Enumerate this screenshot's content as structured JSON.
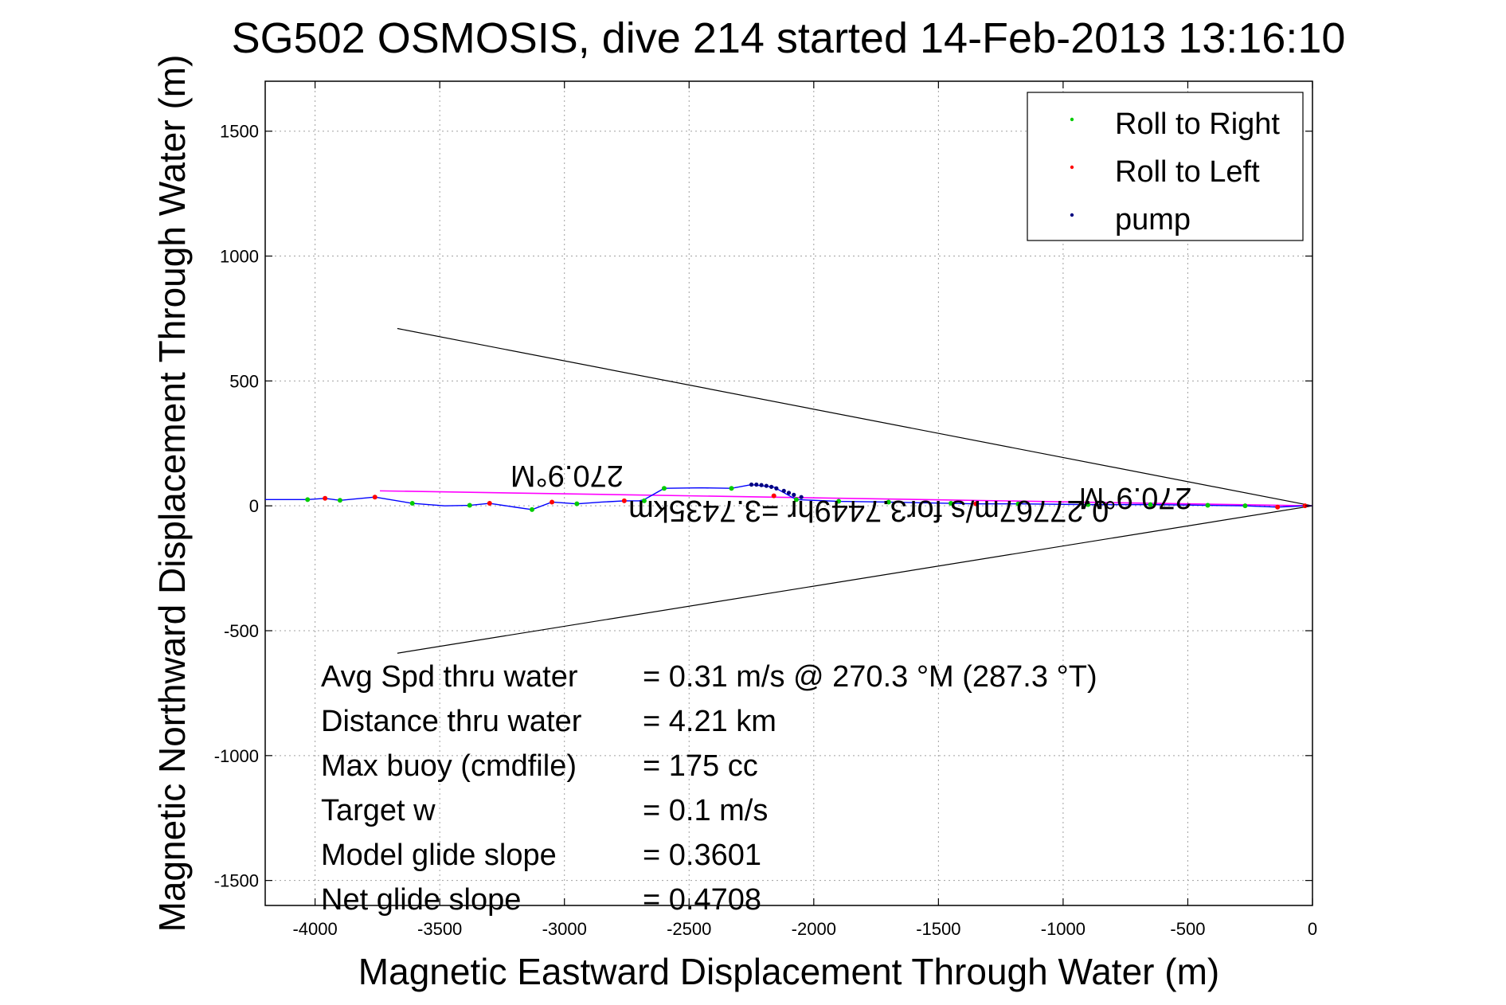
{
  "chart_data": {
    "type": "scatter",
    "title": "SG502 OSMOSIS, dive 214 started 14-Feb-2013 13:16:10",
    "xlabel": "Magnetic Eastward Displacement Through Water (m)",
    "ylabel": "Magnetic Northward Displacement Through Water (m)",
    "xlim": [
      -4200,
      0
    ],
    "ylim": [
      -1600,
      1700
    ],
    "x_ticks": [
      -4000,
      -3500,
      -3000,
      -2500,
      -2000,
      -1500,
      -1000,
      -500,
      0
    ],
    "x_tick_labels": [
      "-4000",
      "-3500",
      "-3000",
      "-2500",
      "-2000",
      "-1500",
      "-1000",
      "-500",
      "0"
    ],
    "y_ticks": [
      1500,
      1000,
      500,
      0,
      -500,
      -1000,
      -1500
    ],
    "y_tick_labels": [
      "1500",
      "1000",
      "500",
      "0",
      "-500",
      "-1000",
      "-1500"
    ],
    "grid": true,
    "legend_position": "top-right",
    "colors": {
      "roll_right": "#00cc00",
      "roll_left": "#ff0000",
      "pump": "#000080",
      "track": "#0000ff",
      "depth_avg_current": "#ff00ff",
      "cone": "#000000"
    },
    "series": [
      {
        "name": "Roll to Right",
        "points": [
          [
            -4030,
            25
          ],
          [
            -3900,
            22
          ],
          [
            -3610,
            10
          ],
          [
            -3380,
            2
          ],
          [
            -3130,
            -15
          ],
          [
            -2950,
            8
          ],
          [
            -2680,
            20
          ],
          [
            -2600,
            70
          ],
          [
            -2330,
            70
          ],
          [
            -2070,
            25
          ],
          [
            -1900,
            18
          ],
          [
            -1700,
            15
          ],
          [
            -1450,
            10
          ],
          [
            -1180,
            8
          ],
          [
            -900,
            5
          ],
          [
            -650,
            5
          ],
          [
            -420,
            2
          ],
          [
            -270,
            0
          ]
        ]
      },
      {
        "name": "Roll to Left",
        "points": [
          [
            -3960,
            30
          ],
          [
            -3760,
            35
          ],
          [
            -3300,
            10
          ],
          [
            -3050,
            15
          ],
          [
            -2760,
            20
          ],
          [
            -2160,
            40
          ],
          [
            -1350,
            8
          ],
          [
            -140,
            -5
          ],
          [
            -30,
            0
          ]
        ]
      },
      {
        "name": "pump",
        "points": [
          [
            -2250,
            85
          ],
          [
            -2230,
            85
          ],
          [
            -2210,
            83
          ],
          [
            -2190,
            80
          ],
          [
            -2170,
            76
          ],
          [
            -2150,
            70
          ],
          [
            -2120,
            60
          ],
          [
            -2100,
            52
          ],
          [
            -2080,
            44
          ],
          [
            -2050,
            35
          ]
        ]
      }
    ],
    "track": [
      [
        -4200,
        25
      ],
      [
        -4030,
        25
      ],
      [
        -3960,
        30
      ],
      [
        -3900,
        22
      ],
      [
        -3760,
        35
      ],
      [
        -3610,
        10
      ],
      [
        -3480,
        0
      ],
      [
        -3380,
        2
      ],
      [
        -3300,
        10
      ],
      [
        -3200,
        -5
      ],
      [
        -3130,
        -15
      ],
      [
        -3050,
        15
      ],
      [
        -2950,
        8
      ],
      [
        -2850,
        15
      ],
      [
        -2760,
        20
      ],
      [
        -2700,
        20
      ],
      [
        -2680,
        25
      ],
      [
        -2600,
        70
      ],
      [
        -2450,
        72
      ],
      [
        -2330,
        70
      ],
      [
        -2250,
        85
      ],
      [
        -2160,
        75
      ],
      [
        -2070,
        25
      ],
      [
        -1900,
        18
      ],
      [
        -1700,
        15
      ],
      [
        -1450,
        10
      ],
      [
        -1350,
        8
      ],
      [
        -1180,
        8
      ],
      [
        -900,
        5
      ],
      [
        -650,
        5
      ],
      [
        -420,
        2
      ],
      [
        -270,
        0
      ],
      [
        -140,
        -5
      ],
      [
        -30,
        0
      ],
      [
        0,
        0
      ]
    ],
    "depth_avg_current": [
      [
        -3740,
        60
      ],
      [
        0,
        0
      ]
    ],
    "heading_cone": [
      [
        [
          -3670,
          710
        ],
        [
          0,
          0
        ]
      ],
      [
        [
          -3670,
          -590
        ],
        [
          0,
          0
        ]
      ]
    ],
    "annotations": [
      {
        "text": "270.9°M",
        "x": -2990,
        "y": 160,
        "rotation": 180
      },
      {
        "text": "270.9°M",
        "x": -710,
        "y": 70,
        "rotation": 180
      },
      {
        "text": "0.27767m/s for3.7449hr =3.7435km",
        "x": -1780,
        "y": 20,
        "rotation": 180
      }
    ],
    "stats": [
      {
        "label": "Avg Spd thru water",
        "value": "=  0.31 m/s @ 270.3 °M (287.3 °T)"
      },
      {
        "label": "Distance thru water",
        "value": "=  4.21 km"
      },
      {
        "label": "Max buoy (cmdfile)",
        "value": "= 175 cc"
      },
      {
        "label": "Target w",
        "value": "= 0.1 m/s"
      },
      {
        "label": "Model glide slope",
        "value": "= 0.3601"
      },
      {
        "label": "Net glide slope",
        "value": "= 0.4708"
      }
    ]
  }
}
